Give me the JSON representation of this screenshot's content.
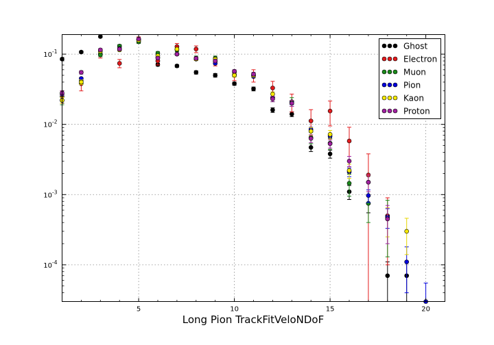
{
  "chart_data": {
    "type": "scatter",
    "title": "",
    "xlabel": "Long Pion TrackFitVeloNDoF",
    "ylabel": "",
    "xlim": [
      1,
      21
    ],
    "ylim": [
      3e-05,
      0.19
    ],
    "yscale": "log",
    "grid": true,
    "legend_position": "top-right",
    "x_ticks": [
      5,
      10,
      15,
      20
    ],
    "y_ticks": [
      {
        "value": 0.1,
        "base": "10",
        "exp": "-1"
      },
      {
        "value": 0.01,
        "base": "10",
        "exp": "-2"
      },
      {
        "value": 0.001,
        "base": "10",
        "exp": "-3"
      },
      {
        "value": 0.0001,
        "base": "10",
        "exp": "-4"
      }
    ],
    "series": [
      {
        "name": "Ghost",
        "color": "#000000",
        "err_color": "#000000",
        "points": [
          [
            1,
            0.085,
            0.003
          ],
          [
            2,
            0.107,
            0.004
          ],
          [
            3,
            0.178,
            0.006
          ],
          [
            4,
            0.13,
            0.005
          ],
          [
            5,
            0.163,
            0.006
          ],
          [
            6,
            0.071,
            0.003
          ],
          [
            7,
            0.068,
            0.003
          ],
          [
            8,
            0.055,
            0.003
          ],
          [
            9,
            0.05,
            0.003
          ],
          [
            10,
            0.038,
            0.002
          ],
          [
            11,
            0.032,
            0.002
          ],
          [
            12,
            0.016,
            0.0012
          ],
          [
            13,
            0.014,
            0.0011
          ],
          [
            14,
            0.0047,
            0.0006
          ],
          [
            15,
            0.0038,
            0.0005
          ],
          [
            16,
            0.0011,
            0.00025
          ],
          [
            17,
            0.00075,
            0.0002
          ],
          [
            18,
            7e-05,
            4e-05
          ],
          [
            19,
            7e-05,
            4e-05
          ]
        ]
      },
      {
        "name": "Electron",
        "color": "#e31a1c",
        "err_color": "#e31a1c",
        "points": [
          [
            1,
            0.025,
            0.005
          ],
          [
            2,
            0.038,
            0.008
          ],
          [
            3,
            0.1,
            0.012
          ],
          [
            4,
            0.074,
            0.01
          ],
          [
            5,
            0.16,
            0.016
          ],
          [
            6,
            0.08,
            0.01
          ],
          [
            7,
            0.128,
            0.014
          ],
          [
            8,
            0.118,
            0.013
          ],
          [
            9,
            0.078,
            0.01
          ],
          [
            10,
            0.05,
            0.008
          ],
          [
            11,
            0.05,
            0.01
          ],
          [
            12,
            0.033,
            0.008
          ],
          [
            13,
            0.021,
            0.006
          ],
          [
            14,
            0.0112,
            0.005
          ],
          [
            15,
            0.0155,
            0.006
          ],
          [
            16,
            0.0058,
            0.0033
          ],
          [
            17,
            0.0019,
            0.0019
          ],
          [
            18,
            0.0005,
            0.0004
          ]
        ]
      },
      {
        "name": "Muon",
        "color": "#1a8a1a",
        "err_color": "#1a8a1a",
        "points": [
          [
            1,
            0.022,
            0.003
          ],
          [
            2,
            0.042,
            0.004
          ],
          [
            3,
            0.098,
            0.006
          ],
          [
            4,
            0.13,
            0.007
          ],
          [
            5,
            0.15,
            0.008
          ],
          [
            6,
            0.103,
            0.006
          ],
          [
            7,
            0.115,
            0.007
          ],
          [
            8,
            0.088,
            0.006
          ],
          [
            9,
            0.088,
            0.006
          ],
          [
            10,
            0.052,
            0.004
          ],
          [
            11,
            0.05,
            0.004
          ],
          [
            12,
            0.024,
            0.003
          ],
          [
            13,
            0.021,
            0.003
          ],
          [
            14,
            0.0065,
            0.0012
          ],
          [
            15,
            0.0054,
            0.001
          ],
          [
            16,
            0.00145,
            0.0005
          ],
          [
            17,
            0.00075,
            0.00035
          ],
          [
            18,
            0.00048,
            0.00035
          ]
        ]
      },
      {
        "name": "Pion",
        "color": "#0000dd",
        "err_color": "#0000dd",
        "points": [
          [
            1,
            0.027,
            0.001
          ],
          [
            2,
            0.045,
            0.0015
          ],
          [
            3,
            0.11,
            0.002
          ],
          [
            4,
            0.12,
            0.002
          ],
          [
            5,
            0.16,
            0.003
          ],
          [
            6,
            0.09,
            0.002
          ],
          [
            7,
            0.1,
            0.002
          ],
          [
            8,
            0.085,
            0.002
          ],
          [
            9,
            0.074,
            0.002
          ],
          [
            10,
            0.055,
            0.0015
          ],
          [
            11,
            0.048,
            0.0015
          ],
          [
            12,
            0.024,
            0.001
          ],
          [
            13,
            0.02,
            0.001
          ],
          [
            14,
            0.0085,
            0.0006
          ],
          [
            15,
            0.0068,
            0.0005
          ],
          [
            16,
            0.0021,
            0.0003
          ],
          [
            17,
            0.00097,
            0.0002
          ],
          [
            18,
            0.00048,
            0.00015
          ],
          [
            19,
            0.00011,
            7e-05
          ],
          [
            20,
            3e-05,
            2.5e-05
          ]
        ]
      },
      {
        "name": "Kaon",
        "color": "#f5e900",
        "err_color": "#e6d600",
        "points": [
          [
            1,
            0.022,
            0.002
          ],
          [
            2,
            0.04,
            0.003
          ],
          [
            3,
            0.11,
            0.005
          ],
          [
            4,
            0.115,
            0.005
          ],
          [
            5,
            0.158,
            0.006
          ],
          [
            6,
            0.095,
            0.004
          ],
          [
            7,
            0.118,
            0.005
          ],
          [
            8,
            0.085,
            0.004
          ],
          [
            9,
            0.085,
            0.004
          ],
          [
            10,
            0.05,
            0.003
          ],
          [
            11,
            0.05,
            0.003
          ],
          [
            12,
            0.027,
            0.002
          ],
          [
            13,
            0.02,
            0.002
          ],
          [
            14,
            0.008,
            0.001
          ],
          [
            15,
            0.0072,
            0.001
          ],
          [
            16,
            0.0022,
            0.0005
          ],
          [
            17,
            0.0015,
            0.0004
          ],
          [
            18,
            0.00045,
            0.0002
          ],
          [
            19,
            0.0003,
            0.00016
          ]
        ]
      },
      {
        "name": "Proton",
        "color": "#a020a0",
        "err_color": "#a020a0",
        "points": [
          [
            1,
            0.028,
            0.002
          ],
          [
            2,
            0.055,
            0.003
          ],
          [
            3,
            0.115,
            0.005
          ],
          [
            4,
            0.118,
            0.005
          ],
          [
            5,
            0.165,
            0.006
          ],
          [
            6,
            0.088,
            0.004
          ],
          [
            7,
            0.1,
            0.004
          ],
          [
            8,
            0.087,
            0.004
          ],
          [
            9,
            0.08,
            0.004
          ],
          [
            10,
            0.057,
            0.003
          ],
          [
            11,
            0.052,
            0.003
          ],
          [
            12,
            0.023,
            0.002
          ],
          [
            13,
            0.02,
            0.002
          ],
          [
            14,
            0.0063,
            0.0008
          ],
          [
            15,
            0.0053,
            0.0007
          ],
          [
            16,
            0.003,
            0.0005
          ],
          [
            17,
            0.0015,
            0.0004
          ],
          [
            18,
            0.00045,
            0.00025
          ]
        ]
      }
    ]
  }
}
